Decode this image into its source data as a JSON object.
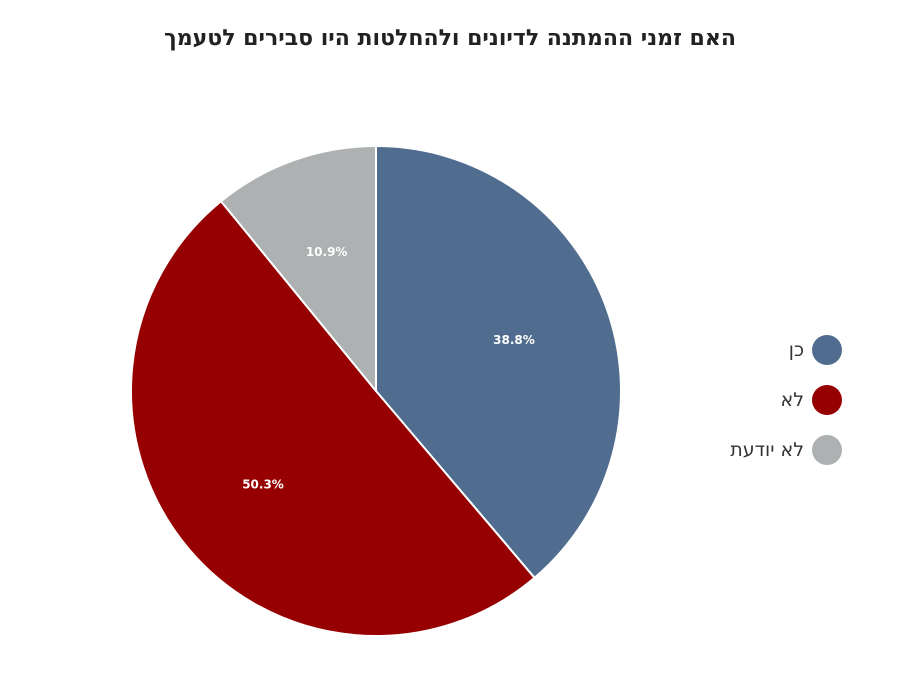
{
  "chart_data": {
    "type": "pie",
    "title": "האם זמני ההמתנה לדיונים ולהחלטות היו סבירים לטעמך",
    "slices": [
      {
        "name": "כן",
        "value": 38.8,
        "label": "38.8%",
        "color": "#506d8f"
      },
      {
        "name": "לא",
        "value": 50.3,
        "label": "50.3%",
        "color": "#970000"
      },
      {
        "name": "לא יודעת",
        "value": 10.9,
        "label": "10.9%",
        "color": "#adb1b2"
      }
    ],
    "legend_position": "right",
    "start": "top",
    "direction": "clockwise"
  }
}
